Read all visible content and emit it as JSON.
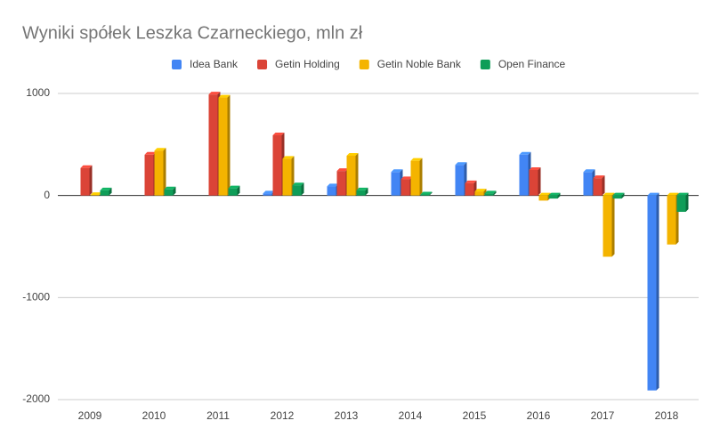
{
  "chart_data": {
    "type": "bar",
    "title": "Wyniki spółek Leszka Czarneckiego, mln zł",
    "categories": [
      "2009",
      "2010",
      "2011",
      "2012",
      "2013",
      "2014",
      "2015",
      "2016",
      "2017",
      "2018"
    ],
    "series": [
      {
        "name": "Idea Bank",
        "color": "#4285f4",
        "values": [
          null,
          null,
          null,
          20,
          90,
          230,
          300,
          400,
          230,
          -1910
        ]
      },
      {
        "name": "Getin Holding",
        "color": "#db4437",
        "values": [
          270,
          400,
          990,
          590,
          240,
          160,
          120,
          250,
          170,
          null
        ]
      },
      {
        "name": "Getin Noble Bank",
        "color": "#f4b400",
        "values": [
          5,
          440,
          960,
          360,
          390,
          340,
          40,
          -50,
          -600,
          -480
        ]
      },
      {
        "name": "Open Finance",
        "color": "#0f9d58",
        "values": [
          50,
          60,
          70,
          100,
          50,
          10,
          20,
          -30,
          -30,
          -160
        ]
      }
    ],
    "ylim": [
      -2000,
      1000
    ],
    "yticks": [
      -2000,
      -1000,
      0,
      1000
    ],
    "grid": true,
    "legend": "top"
  }
}
